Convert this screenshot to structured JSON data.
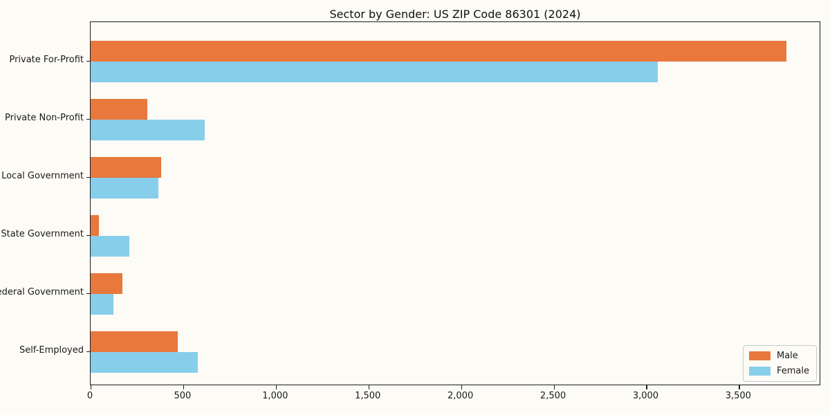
{
  "title": "Sector by Gender: US ZIP Code 86301 (2024)",
  "chart_data": {
    "type": "bar",
    "orientation": "horizontal",
    "title": "Sector by Gender: US ZIP Code 86301 (2024)",
    "xlabel": "",
    "ylabel": "",
    "categories": [
      "Private For-Profit",
      "Private Non-Profit",
      "Local Government",
      "State Government",
      "Federal Government",
      "Self-Employed"
    ],
    "series": [
      {
        "name": "Male",
        "color": "#E8783C",
        "values": [
          3755,
          305,
          380,
          45,
          170,
          470
        ]
      },
      {
        "name": "Female",
        "color": "#87CEEB",
        "values": [
          3060,
          615,
          365,
          210,
          125,
          580
        ]
      }
    ],
    "xlim": [
      0,
      3943
    ],
    "xticks": [
      0,
      500,
      1000,
      1500,
      2000,
      2500,
      3000,
      3500
    ],
    "xtick_labels": [
      "0",
      "500",
      "1,000",
      "1,500",
      "2,000",
      "2,500",
      "3,000",
      "3,500"
    ],
    "grid": false,
    "legend_position": "lower right",
    "frame_color": "#1c1c1c",
    "background_color": "#fdfbf5"
  }
}
